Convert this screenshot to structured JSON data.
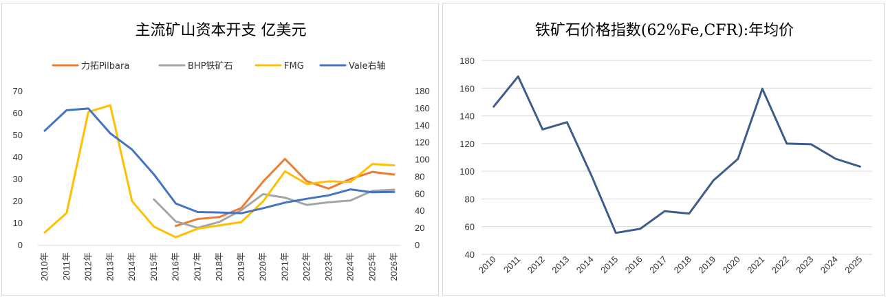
{
  "chart_data": [
    {
      "type": "line",
      "title": "主流矿山资本开支 亿美元",
      "categories": [
        "2010年",
        "2011年",
        "2012年",
        "2013年",
        "2014年",
        "2015年",
        "2016年",
        "2017年",
        "2018年",
        "2019年",
        "2020年",
        "2021年",
        "2022年",
        "2023年",
        "2024年",
        "2025年",
        "2026年"
      ],
      "ylim": [
        0,
        70
      ],
      "yticks": [
        "0",
        "10",
        "20",
        "30",
        "40",
        "50",
        "60",
        "70"
      ],
      "y2lim": [
        0,
        180
      ],
      "y2ticks": [
        "0",
        "20",
        "40",
        "60",
        "80",
        "100",
        "120",
        "140",
        "160",
        "180"
      ],
      "legend_position": "top",
      "grid": false,
      "series": [
        {
          "name": "力拓Pilbara",
          "color": "#ED7D31",
          "axis": "left",
          "values": [
            null,
            null,
            null,
            null,
            null,
            null,
            8.8,
            12.0,
            12.9,
            17.0,
            29.0,
            39.3,
            29.2,
            25.8,
            30.2,
            33.4,
            32.2
          ]
        },
        {
          "name": "BHP铁矿石",
          "color": "#A5A5A5",
          "axis": "left",
          "values": [
            null,
            null,
            null,
            null,
            null,
            20.9,
            10.9,
            8.0,
            10.7,
            16.0,
            23.3,
            21.7,
            18.4,
            19.6,
            20.4,
            24.8,
            25.3
          ]
        },
        {
          "name": "FMG",
          "color": "#FFC000",
          "axis": "left",
          "values": [
            5.9,
            14.7,
            60.7,
            63.7,
            20.1,
            8.5,
            3.7,
            7.6,
            9.1,
            10.6,
            20.0,
            33.7,
            27.9,
            29.1,
            28.8,
            37.0,
            36.4
          ]
        },
        {
          "name": "Vale右轴",
          "color": "#4472C4",
          "axis": "right",
          "values": [
            134,
            158,
            160,
            131,
            112,
            83,
            49,
            39,
            38.5,
            37.5,
            43.5,
            50,
            54.5,
            58.5,
            65.5,
            62,
            62.5
          ]
        }
      ]
    },
    {
      "type": "line",
      "title": "铁矿石价格指数(62%Fe,CFR):年均价",
      "categories": [
        "2010",
        "2011",
        "2012",
        "2013",
        "2014",
        "2015",
        "2016",
        "2017",
        "2018",
        "2019",
        "2020",
        "2021",
        "2022",
        "2023",
        "2024",
        "2025"
      ],
      "ylim": [
        40,
        180
      ],
      "yticks": [
        "40",
        "60",
        "80",
        "100",
        "120",
        "140",
        "160",
        "180"
      ],
      "grid": true,
      "series": [
        {
          "name": "",
          "color": "#3E5C8A",
          "values": [
            146.7,
            168.5,
            130.2,
            135.4,
            97.0,
            55.5,
            58.4,
            71.2,
            69.4,
            93.4,
            108.9,
            159.6,
            120.0,
            119.5,
            109.0,
            103.4
          ]
        }
      ]
    }
  ]
}
